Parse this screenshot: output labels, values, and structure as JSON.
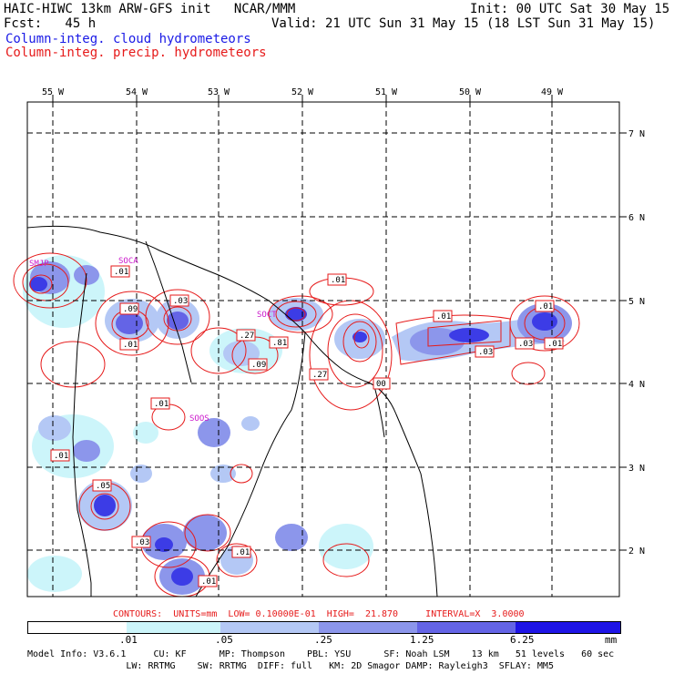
{
  "header": {
    "model_line": "HAIC-HIWC 13km ARW-GFS init   NCAR/MMM",
    "init": "Init: 00 UTC Sat 30 May 15",
    "fcst": "Fcst:   45 h",
    "valid": "Valid: 21 UTC Sun 31 May 15 (18 LST Sun 31 May 15)",
    "field1": "Column-integ. cloud hydrometeors",
    "field2": "Column-integ. precip. hydrometeors"
  },
  "map": {
    "lon_labels": [
      "55 W",
      "54 W",
      "53 W",
      "52 W",
      "51 W",
      "50 W",
      "49 W"
    ],
    "lat_labels": [
      "7 N",
      "6 N",
      "5 N",
      "4 N",
      "3 N",
      "2 N"
    ],
    "station_labels": [
      "SMJP",
      "SOCA",
      "SOCT",
      "SOOS"
    ],
    "contour_labels": [
      ".01",
      ".09",
      ".03",
      ".01",
      ".27",
      ".81",
      ".09",
      ".01",
      ".27",
      ".01",
      ".03",
      ".01",
      ".03",
      ".01",
      ".01",
      ".05",
      ".03",
      ".01",
      ".01",
      "00",
      ".01",
      ".05"
    ]
  },
  "contour_info": {
    "text": "CONTOURS:  UNITS=mm  LOW= 0.10000E-01  HIGH=  21.870     INTERVAL=X  3.0000"
  },
  "colorbar": {
    "ticks": [
      ".01",
      ".05",
      ".25",
      "1.25",
      "6.25"
    ],
    "unit": "mm",
    "colors": [
      "#ffffff",
      "#ccf5fa",
      "#b4c8f5",
      "#8c96eb",
      "#6464e6",
      "#3c3ce6",
      "#1e14e6"
    ]
  },
  "footer": {
    "line1": "Model Info: V3.6.1     CU: KF      MP: Thompson    PBL: YSU      SF: Noah LSM    13 km   51 levels   60 sec",
    "line2": "                  LW: RRTMG    SW: RRTMG  DIFF: full   KM: 2D Smagor DAMP: Rayleigh3  SFLAY: MM5"
  }
}
